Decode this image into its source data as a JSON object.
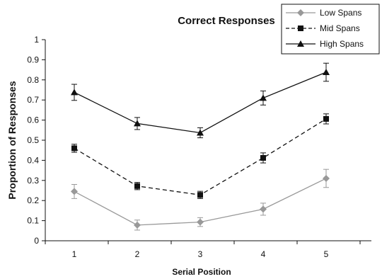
{
  "chart_data": {
    "type": "line",
    "title": "Correct Responses",
    "xlabel": "Serial Position",
    "ylabel": "Proportion of Responses",
    "x": [
      1,
      2,
      3,
      4,
      5
    ],
    "x_tick_labels": [
      "1",
      "2",
      "3",
      "4",
      "5"
    ],
    "ylim": [
      0,
      1
    ],
    "y_tick_labels": [
      "0",
      "0.1",
      "0.2",
      "0.3",
      "0.4",
      "0.5",
      "0.6",
      "0.7",
      "0.8",
      "0.9",
      "1"
    ],
    "grid": false,
    "legend_position": "top-right",
    "series": [
      {
        "name": "Low Spans",
        "values": [
          0.245,
          0.078,
          0.093,
          0.157,
          0.31
        ],
        "error": [
          0.035,
          0.025,
          0.022,
          0.03,
          0.045
        ],
        "color": "#999999",
        "marker": "diamond",
        "line_style": "solid"
      },
      {
        "name": "Mid Spans",
        "values": [
          0.46,
          0.272,
          0.228,
          0.412,
          0.606
        ],
        "error": [
          0.02,
          0.018,
          0.018,
          0.025,
          0.025
        ],
        "color": "#111111",
        "marker": "square",
        "line_style": "dashed"
      },
      {
        "name": "High Spans",
        "values": [
          0.738,
          0.583,
          0.537,
          0.71,
          0.838
        ],
        "error": [
          0.04,
          0.03,
          0.025,
          0.035,
          0.045
        ],
        "color": "#111111",
        "marker": "triangle",
        "line_style": "solid"
      }
    ]
  }
}
